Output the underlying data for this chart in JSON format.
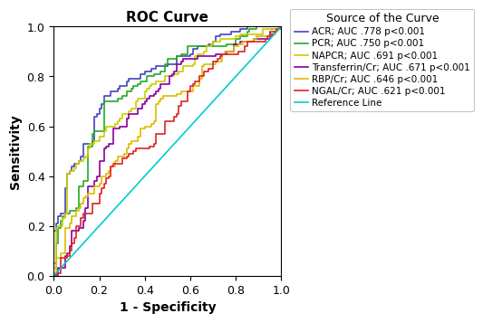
{
  "title": "ROC Curve",
  "xlabel": "1 - Specificity",
  "ylabel": "Sensitivity",
  "xlim": [
    0.0,
    1.0
  ],
  "ylim": [
    0.0,
    1.0
  ],
  "xticks": [
    0.0,
    0.2,
    0.4,
    0.6,
    0.8,
    1.0
  ],
  "yticks": [
    0.0,
    0.2,
    0.4,
    0.6,
    0.8,
    1.0
  ],
  "legend_title": "Source of the Curve",
  "curves": [
    {
      "label": "ACR; AUC .778 p<0.001",
      "color": "#4444bb",
      "auc": 0.778,
      "seed": 7
    },
    {
      "label": "PCR; AUC .750 p<0.001",
      "color": "#22aa22",
      "auc": 0.75,
      "seed": 14
    },
    {
      "label": "NAPCR; AUC .691 p<0.001",
      "color": "#cccc00",
      "auc": 0.691,
      "seed": 21
    },
    {
      "label": "Transferrin/Cr; AUC .671 p<0.001",
      "color": "#880099",
      "auc": 0.671,
      "seed": 28
    },
    {
      "label": "RBP/Cr; AUC .646 p<0.001",
      "color": "#ddbb00",
      "auc": 0.646,
      "seed": 35
    },
    {
      "label": "NGAL/Cr; AUC .621 p<0.001",
      "color": "#dd2222",
      "auc": 0.621,
      "seed": 42
    }
  ],
  "reference_line_color": "#00cccc",
  "reference_line_label": "Reference Line",
  "background_color": "#ffffff",
  "title_fontsize": 11,
  "label_fontsize": 10,
  "tick_fontsize": 9,
  "legend_fontsize": 7.5,
  "legend_title_fontsize": 9,
  "linewidth": 1.2
}
